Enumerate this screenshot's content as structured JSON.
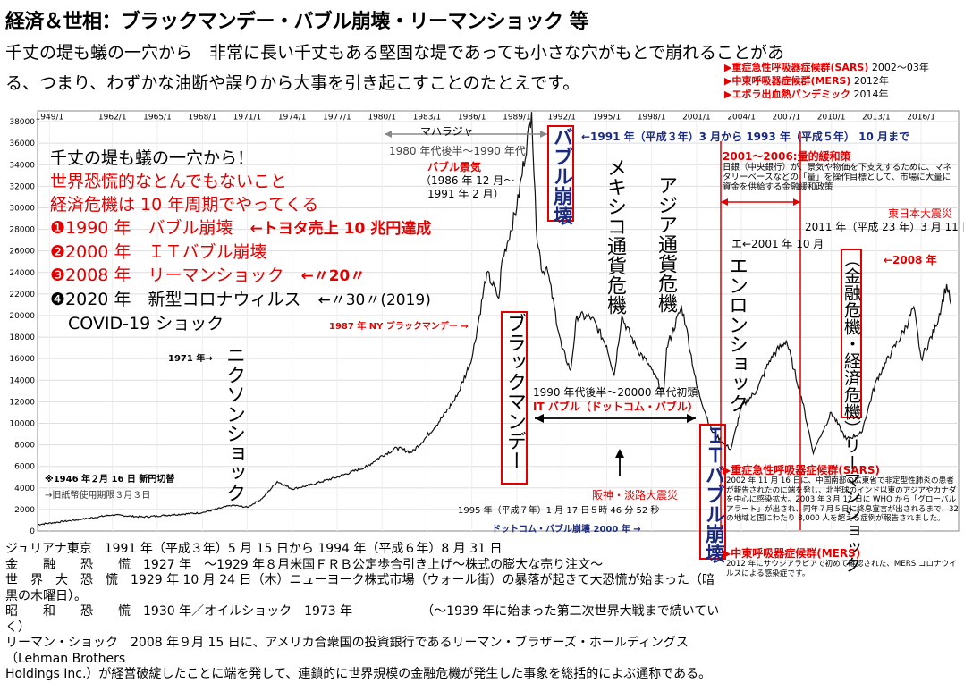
{
  "title": "経済＆世相：ブラックマンデー・バブル崩壊・リーマンショック 等",
  "subtitle_line1": "千丈の堤も蟻の一穴から　非常に長い千丈もある堅固な堤であっても小さな穴がもとで崩れることがあ",
  "subtitle_line2": "る、つまり、わずかな油断や誤りから大事を引き起こすことのたとえです。",
  "epidemics": [
    {
      "label": "▶重症急性呼吸器症候群(SARS)",
      "year": "2002〜03年"
    },
    {
      "label": "▶中東呼吸器症候群(MERS)",
      "year": "2012年"
    },
    {
      "label": "▶エボラ出血熱パンデミック",
      "year": "2014年"
    }
  ],
  "chart_data": {
    "type": "line",
    "title": "",
    "xlabel": "",
    "ylabel": "",
    "x_ticks": [
      "1949/1",
      "1962/1",
      "1965/1",
      "1968/1",
      "1971/1",
      "1974/1",
      "1977/1",
      "1980/1",
      "1983/1",
      "1986/1",
      "1989/1",
      "1992/1",
      "1995/1",
      "1998/1",
      "2001/1",
      "2004/1",
      "2007/1",
      "2010/1",
      "2013/1",
      "2016/1"
    ],
    "y_ticks": [
      0,
      2000,
      4000,
      6000,
      8000,
      10000,
      12000,
      14000,
      16000,
      18000,
      20000,
      22000,
      24000,
      26000,
      28000,
      30000,
      32000,
      34000,
      36000,
      38000
    ],
    "ylim": [
      0,
      39000
    ],
    "xlim": [
      1957,
      2018.5
    ],
    "grid": true,
    "series": [
      {
        "x": [
          1957,
          1960,
          1962,
          1964,
          1966,
          1968,
          1970,
          1971,
          1972,
          1973,
          1974,
          1975,
          1977,
          1979,
          1980,
          1981,
          1982,
          1983,
          1984,
          1985,
          1986,
          1987,
          1987.8,
          1988,
          1989,
          1989.99,
          1990.3,
          1990.7,
          1991,
          1992,
          1992.6,
          1993,
          1994,
          1995,
          1995.5,
          1996,
          1997,
          1998,
          1998.8,
          1999,
          2000,
          2000.3,
          2001,
          2002,
          2003,
          2003.3,
          2004,
          2005,
          2006,
          2007,
          2007.5,
          2008,
          2008.8,
          2009,
          2010,
          2011,
          2012,
          2013,
          2014,
          2015,
          2015.5,
          2016,
          2017,
          2017.7,
          2018
        ],
        "y": [
          600,
          1100,
          1500,
          1300,
          1500,
          1700,
          2400,
          2200,
          3000,
          4600,
          3900,
          4200,
          5000,
          6000,
          7000,
          7700,
          7300,
          8800,
          10500,
          12500,
          16000,
          24000,
          21600,
          25000,
          30000,
          38900,
          28000,
          24000,
          24500,
          17000,
          14900,
          20000,
          19800,
          17200,
          14500,
          19900,
          17000,
          15000,
          12800,
          17000,
          20800,
          19000,
          13500,
          9300,
          7900,
          7600,
          11500,
          13000,
          16200,
          17700,
          15000,
          12500,
          7200,
          8000,
          11000,
          8500,
          9100,
          14000,
          16500,
          19000,
          20800,
          16000,
          19000,
          22900,
          21000
        ]
      }
    ]
  },
  "chart_labels": {
    "maharaja": "マハラジャ",
    "era_1980s": "1980 年代後半〜1990 年代",
    "bubble_boom": "バブル景気",
    "bubble_period1": "（1986 年 12 月〜",
    "bubble_period2": "1991 年 2 月）",
    "bubble_collapse_v": "バブル崩壊",
    "range_1991_1993": "←1991 年（平成３年）3 月から 1993 年（平成５年） 10 月まで",
    "mexico": "メキシコ通貨危機",
    "asia": "アジア通貨危機",
    "qe_title": "2001〜2006:量的緩和策",
    "qe_text": "日銀（中央銀行）が、景気や物価を下支えするために、マネタリーベースなどの「量」を操作目標として、市場に大量に資金を供給する金融緩和政策",
    "east_japan": "東日本大震災",
    "east_japan_date": "2011 年（平成 23 年）3 月 11 日",
    "enron_date": "エ←2001 年 10 月",
    "enron_v": "エンロンショック",
    "lehman_2008": "←2008 年",
    "lehman_v": "︵金融危機・経済危機︶リーマンショック",
    "ny_black": "1987 年 NY ブラックマンデー →",
    "black_monday_v": "ブラックマンデー",
    "nixon_1971": "1971 年→",
    "nixon_v": "ニクソンショック",
    "it_era": "1990 年代後半〜20000 年代初頭",
    "it_bubble": "IT バブル（ドットコム・バブル）",
    "it_collapse_v": "ＩＴバブル崩壊",
    "kobe": "阪神・淡路大震災",
    "kobe_date": "1995 年（平成７年）1 月 17 日５時 46 分 52 秒",
    "dotcom": "ドットコム・バブル崩壊 2000 年 →",
    "new_yen": "※1946 年２月 16 日 新円切替",
    "old_bill": "→旧紙幣使用期限３月３日",
    "sars_title": "▶重症急性呼吸器症候群(SARS)",
    "sars_text": "2002 年 11 月 16 日に、中国南部の広東省で非定型性肺炎の患者が報告されたのに端を発し、北半球のインド以東のアジアやカナダを中心に感染拡大。2003 年３月 12 日に WHO から「グローバルアラート」が出され、同年７月５日に終息宣言が出されるまで、32 の地域と国にわたり 8,000 人を超える症例が報告されました。",
    "mers_title": "▶中東呼吸器症候群(MERS)",
    "mers_text": "2012 年にサウジアラビアで初めて確認された、MERS コロナウイルスによる感染症です。"
  },
  "overlay_list": {
    "line1": "千丈の堤も蟻の一穴から！",
    "line2": "世界恐慌的なとんでもないこと",
    "line3": "経済危機は 10 年周期でやってくる",
    "items": [
      {
        "num": "❶",
        "text": "1990 年　バブル崩壊",
        "note": "←トヨタ売上 10 兆円達成"
      },
      {
        "num": "❷",
        "text": "2000 年　ＩＴバブル崩壊",
        "note": ""
      },
      {
        "num": "❸",
        "text": "2008 年　リーマンショック",
        "note": "←〃20〃"
      },
      {
        "num": "❹",
        "text": "2020 年　新型コロナウィルス",
        "note": "←〃30〃(2019)"
      }
    ],
    "covid": "COVID-19 ショック"
  },
  "footer": [
    "ジュリアナ東京　1991 年（平成３年）5 月 15 日から 1994 年（平成６年）8 月 31 日",
    "金　　融　　恐　　慌　1927 年　〜1929 年８月米国ＦＲＢ公定歩合引き上げ〜株式の膨大な売り注文〜",
    "世　界　大　恐　慌　1929 年 10 月 24 日（木）ニューヨーク株式市場（ウォール街）の暴落が起きて大恐慌が始まった（暗黒の木曜日）。",
    "昭　　和　　恐　　慌　1930 年／オイルショック　1973 年　　　　　　（〜1939 年に始まった第二次世界大戦まで続いていく）",
    "リーマン・ショック　2008 年９月 15 日に、アメリカ合衆国の投資銀行であるリーマン・ブラザーズ・ホールディングス（Lehman Brothers",
    "Holdings Inc.）が経営破綻したことに端を発して、連鎖的に世界規模の金融危機が発生した事象を総括的によぶ通称である。"
  ]
}
